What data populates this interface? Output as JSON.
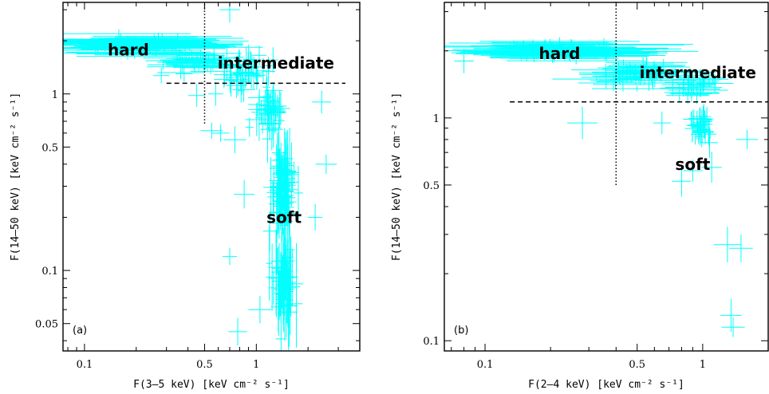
{
  "chart_data": [
    {
      "type": "scatter",
      "panel_label": "(a)",
      "xlabel": "F(3–5 keV) [keV cm⁻² s⁻¹]",
      "ylabel": "F(14–50 keV) [keV cm⁻² s⁻¹]",
      "xscale": "log",
      "yscale": "log",
      "xlim": [
        0.075,
        4.0
      ],
      "ylim": [
        0.035,
        3.3
      ],
      "xticks": [
        {
          "v": 0.1,
          "label": "0.1"
        },
        {
          "v": 0.5,
          "label": "0.5"
        },
        {
          "v": 1,
          "label": "1"
        }
      ],
      "yticks": [
        {
          "v": 0.05,
          "label": "0.05"
        },
        {
          "v": 0.1,
          "label": "0.1"
        },
        {
          "v": 0.5,
          "label": "0.5"
        },
        {
          "v": 1,
          "label": "1"
        }
      ],
      "regions": [
        {
          "label": "hard",
          "x": 0.18,
          "y": 1.78
        },
        {
          "label": "intermediate",
          "x": 1.3,
          "y": 1.5
        },
        {
          "label": "soft",
          "x": 1.45,
          "y": 0.2
        }
      ],
      "hline": {
        "y": 1.15,
        "x0": 0.3,
        "x1": 3.3
      },
      "vline": {
        "x": 0.5,
        "y0": 0.68,
        "y1": 3.3
      },
      "clusters": [
        {
          "xc": 0.2,
          "yc": 1.9,
          "sx": 0.32,
          "sy": 0.05,
          "n": 90,
          "ex": 0.35,
          "ey": 0.02
        },
        {
          "xc": 0.45,
          "yc": 1.55,
          "sx": 0.18,
          "sy": 0.06,
          "n": 40,
          "ex": 0.15,
          "ey": 0.03
        },
        {
          "xc": 0.9,
          "yc": 1.3,
          "sx": 0.14,
          "sy": 0.09,
          "n": 45,
          "ex": 0.05,
          "ey": 0.07
        },
        {
          "xc": 1.2,
          "yc": 0.8,
          "sx": 0.07,
          "sy": 0.12,
          "n": 40,
          "ex": 0.05,
          "ey": 0.1
        },
        {
          "xc": 1.4,
          "yc": 0.3,
          "sx": 0.06,
          "sy": 0.2,
          "n": 90,
          "ex": 0.04,
          "ey": 0.14
        },
        {
          "xc": 1.45,
          "yc": 0.09,
          "sx": 0.06,
          "sy": 0.17,
          "n": 55,
          "ex": 0.04,
          "ey": 0.18
        }
      ],
      "outliers": [
        {
          "x": 0.62,
          "y": 0.6
        },
        {
          "x": 0.55,
          "y": 0.62
        },
        {
          "x": 0.75,
          "y": 0.55
        },
        {
          "x": 0.38,
          "y": 1.3
        },
        {
          "x": 0.28,
          "y": 1.27
        },
        {
          "x": 0.7,
          "y": 3.0
        },
        {
          "x": 2.2,
          "y": 0.2
        },
        {
          "x": 2.55,
          "y": 0.4
        },
        {
          "x": 0.85,
          "y": 0.27
        },
        {
          "x": 0.7,
          "y": 0.12
        },
        {
          "x": 0.78,
          "y": 0.045
        },
        {
          "x": 1.05,
          "y": 0.06
        },
        {
          "x": 2.4,
          "y": 0.9
        },
        {
          "x": 0.45,
          "y": 0.98
        },
        {
          "x": 0.58,
          "y": 1.0
        }
      ]
    },
    {
      "type": "scatter",
      "panel_label": "(b)",
      "xlabel": "F(2–4 keV) [keV cm⁻² s⁻¹]",
      "ylabel": "F(14–50 keV) [keV cm⁻² s⁻¹]",
      "xscale": "log",
      "yscale": "log",
      "xlim": [
        0.065,
        2.0
      ],
      "ylim": [
        0.09,
        3.3
      ],
      "xticks": [
        {
          "v": 0.1,
          "label": "0.1"
        },
        {
          "v": 0.5,
          "label": "0.5"
        },
        {
          "v": 1,
          "label": "1"
        }
      ],
      "yticks": [
        {
          "v": 0.1,
          "label": "0.1"
        },
        {
          "v": 0.5,
          "label": "0.5"
        },
        {
          "v": 1,
          "label": "1"
        }
      ],
      "regions": [
        {
          "label": "hard",
          "x": 0.22,
          "y": 1.95
        },
        {
          "label": "intermediate",
          "x": 0.95,
          "y": 1.6
        },
        {
          "label": "soft",
          "x": 0.9,
          "y": 0.62
        }
      ],
      "hline": {
        "y": 1.18,
        "x0": 0.13,
        "x1": 2.0
      },
      "vline": {
        "x": 0.4,
        "y0": 0.5,
        "y1": 3.3
      },
      "clusters": [
        {
          "xc": 0.22,
          "yc": 2.0,
          "sx": 0.25,
          "sy": 0.04,
          "n": 85,
          "ex": 0.3,
          "ey": 0.02
        },
        {
          "xc": 0.5,
          "yc": 1.6,
          "sx": 0.15,
          "sy": 0.05,
          "n": 55,
          "ex": 0.15,
          "ey": 0.03
        },
        {
          "xc": 0.9,
          "yc": 1.4,
          "sx": 0.1,
          "sy": 0.05,
          "n": 30,
          "ex": 0.1,
          "ey": 0.03
        },
        {
          "xc": 0.98,
          "yc": 0.9,
          "sx": 0.04,
          "sy": 0.06,
          "n": 35,
          "ex": 0.03,
          "ey": 0.05
        }
      ],
      "outliers": [
        {
          "x": 0.08,
          "y": 1.8
        },
        {
          "x": 0.28,
          "y": 0.95
        },
        {
          "x": 1.6,
          "y": 0.8
        },
        {
          "x": 1.3,
          "y": 0.27
        },
        {
          "x": 1.5,
          "y": 0.26
        },
        {
          "x": 1.35,
          "y": 0.13
        },
        {
          "x": 1.38,
          "y": 0.115
        },
        {
          "x": 0.8,
          "y": 0.52
        },
        {
          "x": 0.65,
          "y": 0.95
        },
        {
          "x": 0.9,
          "y": 0.58
        },
        {
          "x": 1.1,
          "y": 0.6
        }
      ]
    }
  ]
}
